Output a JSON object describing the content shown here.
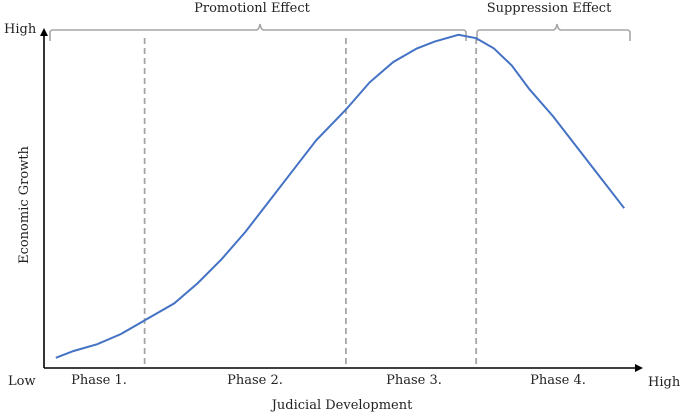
{
  "axes": {
    "y_label": "Economic Growth",
    "x_label": "Judicial Development",
    "y_high": "High",
    "x_high": "High",
    "origin_low": "Low"
  },
  "effects": {
    "promotion": "Promotionl Effect",
    "suppression": "Suppression Effect"
  },
  "phases": [
    "Phase 1.",
    "Phase 2.",
    "Phase 3.",
    "Phase 4."
  ],
  "colors": {
    "curve": "#4472c4",
    "axis": "#000000",
    "divider": "#a6a6a6",
    "brace": "#a6a6a6"
  },
  "chart_data": {
    "type": "line",
    "title": "",
    "xlabel": "Judicial Development",
    "ylabel": "Economic Growth",
    "series": [
      {
        "name": "",
        "x": [
          0.02,
          0.05,
          0.09,
          0.13,
          0.17,
          0.22,
          0.26,
          0.3,
          0.34,
          0.38,
          0.42,
          0.46,
          0.51,
          0.55,
          0.59,
          0.63,
          0.66,
          0.7,
          0.73,
          0.76,
          0.79,
          0.82,
          0.86,
          0.9,
          0.94,
          0.98
        ],
        "y": [
          0.03,
          0.05,
          0.07,
          0.1,
          0.14,
          0.19,
          0.25,
          0.32,
          0.4,
          0.49,
          0.58,
          0.67,
          0.76,
          0.84,
          0.9,
          0.94,
          0.96,
          0.98,
          0.97,
          0.94,
          0.89,
          0.82,
          0.74,
          0.65,
          0.56,
          0.47
        ]
      }
    ],
    "xlim": [
      0,
      1
    ],
    "ylim": [
      0,
      1
    ],
    "dividers_x": [
      0.17,
      0.51,
      0.73
    ],
    "grid": false
  }
}
